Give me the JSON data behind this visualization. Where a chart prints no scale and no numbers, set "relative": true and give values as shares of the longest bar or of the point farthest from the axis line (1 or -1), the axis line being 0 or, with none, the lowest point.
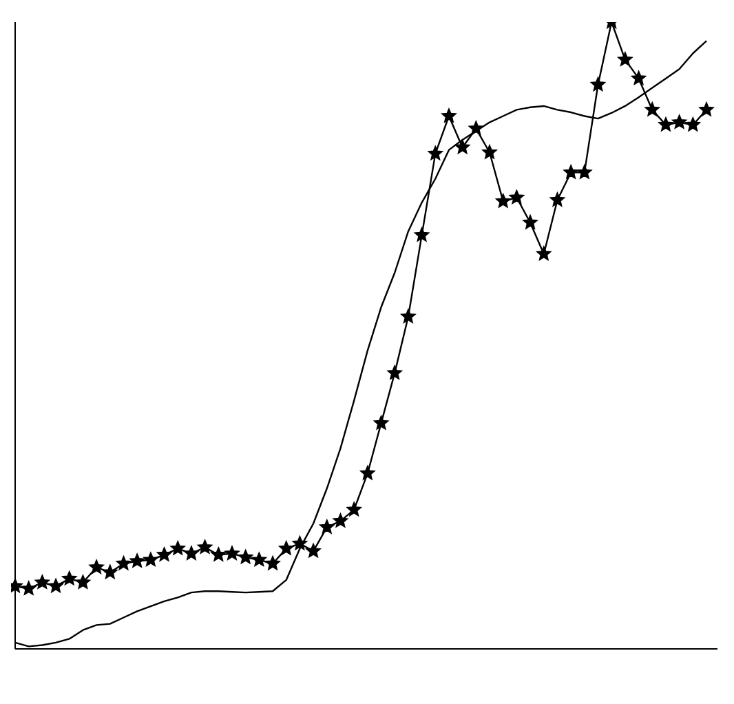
{
  "chart_data": {
    "type": "line",
    "relative": true,
    "grid": false,
    "legend": false,
    "categories": [
      null,
      null,
      null,
      null,
      null,
      null,
      null,
      null,
      null,
      null,
      null,
      null,
      null,
      null,
      null,
      null,
      null,
      null,
      null,
      null,
      null,
      null,
      null,
      null,
      null,
      null,
      null,
      null,
      null,
      null,
      null,
      null,
      null,
      null,
      null,
      null,
      null,
      null,
      null,
      null,
      null,
      null,
      null,
      null,
      null,
      null,
      null,
      null,
      null,
      null,
      null,
      null
    ],
    "series": [
      {
        "color": "#000000",
        "marker": "star",
        "values": [
          0.1,
          0.096,
          0.106,
          0.1,
          0.112,
          0.106,
          0.13,
          0.122,
          0.136,
          0.14,
          0.142,
          0.15,
          0.16,
          0.152,
          0.162,
          0.15,
          0.152,
          0.146,
          0.142,
          0.136,
          0.16,
          0.168,
          0.156,
          0.194,
          0.204,
          0.222,
          0.28,
          0.36,
          0.44,
          0.53,
          0.66,
          0.79,
          0.85,
          0.8,
          0.83,
          0.792,
          0.714,
          0.72,
          0.68,
          0.63,
          0.716,
          0.76,
          0.76,
          0.9,
          1,
          0.94,
          0.91,
          0.86,
          0.836,
          0.84,
          0.836,
          0.86
        ]
      },
      {
        "color": "#000000",
        "marker": "none",
        "values": [
          0.01,
          0.004,
          0.006,
          0.01,
          0.016,
          0.03,
          0.038,
          0.04,
          0.05,
          0.06,
          0.068,
          0.076,
          0.082,
          0.09,
          0.092,
          0.092,
          0.091,
          0.09,
          0.091,
          0.092,
          0.11,
          0.16,
          0.2,
          0.256,
          0.32,
          0.396,
          0.476,
          0.545,
          0.6,
          0.666,
          0.712,
          0.75,
          0.796,
          0.812,
          0.826,
          0.84,
          0.85,
          0.86,
          0.864,
          0.866,
          0.86,
          0.856,
          0.85,
          0.846,
          0.855,
          0.866,
          0.88,
          0.895,
          0.91,
          0.925,
          0.95,
          0.97
        ]
      }
    ]
  }
}
